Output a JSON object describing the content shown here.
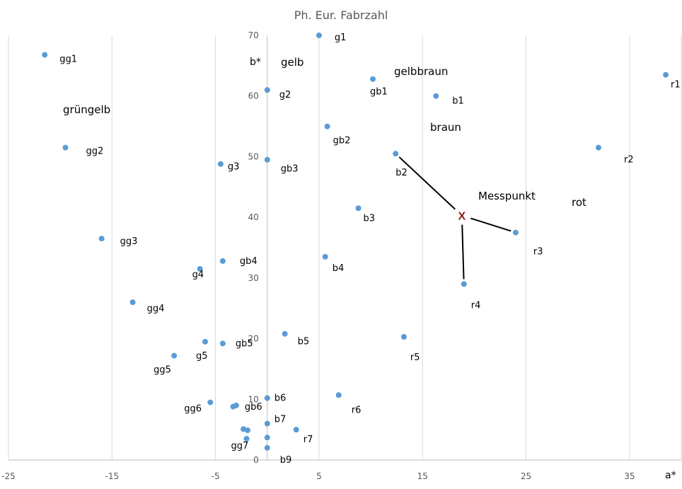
{
  "chart_data": {
    "type": "scatter",
    "title": "Ph. Eur. Fabrzahl",
    "xlabel": "a*",
    "ylabel": "b*",
    "xlim": [
      -25,
      40
    ],
    "ylim": [
      0,
      70
    ],
    "x_ticks": [
      -25,
      -15,
      -5,
      5,
      15,
      25,
      35
    ],
    "y_ticks": [
      0,
      10,
      20,
      30,
      40,
      50,
      60,
      70
    ],
    "grid": "vertical",
    "point_color": "#5B9BD5",
    "points": [
      {
        "label": "g1",
        "x": 5,
        "y": 70
      },
      {
        "label": "g2",
        "x": 0,
        "y": 61
      },
      {
        "label": "g3",
        "x": -4.5,
        "y": 48.8
      },
      {
        "label": "g4",
        "x": -6.5,
        "y": 31.5
      },
      {
        "label": "g5",
        "x": -6,
        "y": 19.5
      },
      {
        "label": "gg1",
        "x": -21.5,
        "y": 66.8
      },
      {
        "label": "gg2",
        "x": -19.5,
        "y": 51.5
      },
      {
        "label": "gg3",
        "x": -16,
        "y": 36.5
      },
      {
        "label": "gg4",
        "x": -13,
        "y": 26
      },
      {
        "label": "gg5",
        "x": -9,
        "y": 17.2
      },
      {
        "label": "gg6",
        "x": -5.5,
        "y": 9.5
      },
      {
        "label": "gg7",
        "x": -2,
        "y": 3.5
      },
      {
        "label": "gb1",
        "x": 10.2,
        "y": 62.8
      },
      {
        "label": "gb2",
        "x": 5.8,
        "y": 55
      },
      {
        "label": "gb3",
        "x": 0,
        "y": 49.5
      },
      {
        "label": "gb4",
        "x": -4.3,
        "y": 32.8
      },
      {
        "label": "gb5",
        "x": -4.3,
        "y": 19.2
      },
      {
        "label": "gb6",
        "x": -3,
        "y": 9
      },
      {
        "label": "b1",
        "x": 16.3,
        "y": 60
      },
      {
        "label": "b2",
        "x": 12.4,
        "y": 50.5
      },
      {
        "label": "b3",
        "x": 8.8,
        "y": 41.5
      },
      {
        "label": "b4",
        "x": 5.6,
        "y": 33.5
      },
      {
        "label": "b5",
        "x": 1.7,
        "y": 20.8
      },
      {
        "label": "b6",
        "x": 0,
        "y": 10.2
      },
      {
        "label": "b7",
        "x": 0,
        "y": 6
      },
      {
        "label": "b9",
        "x": 0,
        "y": 2
      },
      {
        "label": "r1",
        "x": 38.5,
        "y": 63.5
      },
      {
        "label": "r2",
        "x": 32,
        "y": 51.5
      },
      {
        "label": "r3",
        "x": 24,
        "y": 37.5
      },
      {
        "label": "r4",
        "x": 19,
        "y": 29
      },
      {
        "label": "r5",
        "x": 13.2,
        "y": 20.3
      },
      {
        "label": "r6",
        "x": 6.9,
        "y": 10.7
      },
      {
        "label": "r7",
        "x": 2.8,
        "y": 5
      },
      {
        "label": "",
        "x": -3.3,
        "y": 8.8
      },
      {
        "label": "",
        "x": -2.3,
        "y": 5.1
      },
      {
        "label": "",
        "x": -1.9,
        "y": 4.9
      },
      {
        "label": "",
        "x": 0,
        "y": 3.7
      }
    ],
    "area_labels": [
      "grüngelb",
      "gelb",
      "gelbbraun",
      "braun",
      "rot"
    ],
    "measurement": {
      "label": "Messpunkt",
      "marker": "X",
      "x": 18.8,
      "y": 40.3,
      "connected_to": [
        "b2",
        "r3",
        "r4"
      ]
    }
  }
}
